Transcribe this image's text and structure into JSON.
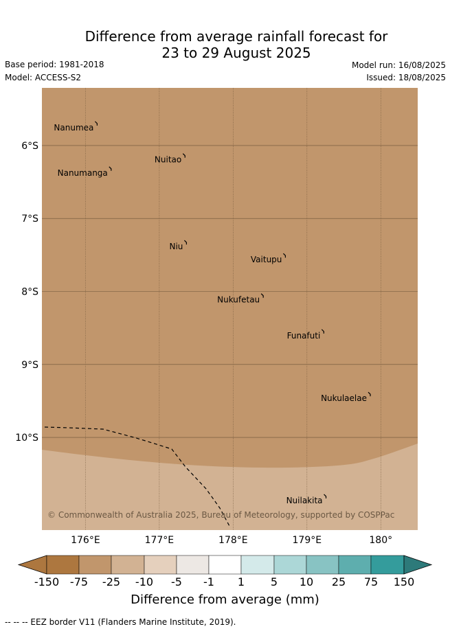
{
  "header": {
    "title_line1": "Difference from average rainfall forecast for",
    "title_line2": "23 to 29 August 2025",
    "base_period": "Base period: 1981-2018",
    "model": "Model: ACCESS-S2",
    "model_run": "Model run: 16/08/2025",
    "issued": "Issued: 18/08/2025"
  },
  "map": {
    "copyright": "© Commonwealth of Australia 2025, Bureau of Meteorology, supported by COSPPac",
    "lon_ticks": [
      "176°E",
      "177°E",
      "178°E",
      "179°E",
      "180°"
    ],
    "lat_ticks": [
      "6°S",
      "7°S",
      "8°S",
      "9°S",
      "10°S"
    ],
    "lon_values": [
      176,
      177,
      178,
      179,
      180
    ],
    "lat_values": [
      -6,
      -7,
      -8,
      -9,
      -10
    ],
    "extent": {
      "lon_min": 175.41,
      "lon_max": 180.5,
      "lat_min": -11.27,
      "lat_max": -5.21
    },
    "islands": [
      {
        "name": "Nanumea",
        "lon": 176.13,
        "lat": -5.67
      },
      {
        "name": "Nuitao",
        "lon": 177.32,
        "lat": -6.11
      },
      {
        "name": "Nanumanga",
        "lon": 176.32,
        "lat": -6.29
      },
      {
        "name": "Niu",
        "lon": 177.34,
        "lat": -7.3
      },
      {
        "name": "Vaitupu",
        "lon": 178.68,
        "lat": -7.48
      },
      {
        "name": "Nukufetau",
        "lon": 178.38,
        "lat": -8.03
      },
      {
        "name": "Funafuti",
        "lon": 179.2,
        "lat": -8.52
      },
      {
        "name": "Nukulaelae",
        "lon": 179.83,
        "lat": -9.38
      },
      {
        "name": "Nuilakita",
        "lon": 179.23,
        "lat": -10.78
      }
    ],
    "anomaly_regions": [
      {
        "category": "-75 to -25",
        "color": "#c1966c"
      },
      {
        "category": "-25 to -10",
        "color": "#d2b293"
      }
    ]
  },
  "colorbar": {
    "title": "Difference from average (mm)",
    "ticks": [
      "-150",
      "-75",
      "-25",
      "-10",
      "-5",
      "-1",
      "1",
      "5",
      "10",
      "25",
      "75",
      "150"
    ],
    "colors": [
      "#ad773f",
      "#ad773f",
      "#c1966c",
      "#d2b293",
      "#e5d0bd",
      "#ede8e4",
      "#ffffff",
      "#d4eaea",
      "#acd7d7",
      "#88c3c3",
      "#5eaeae",
      "#349c9c",
      "#2d7a7a"
    ]
  },
  "footer": {
    "legend": "--  --  -- EEZ border V11 (Flanders Marine Institute, 2019)."
  }
}
